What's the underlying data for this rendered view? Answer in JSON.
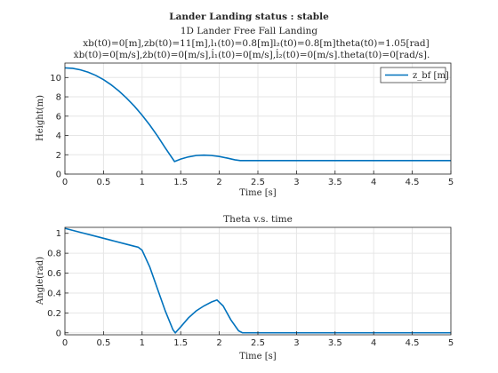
{
  "figure": {
    "status_title": "Lander Landing status : stable",
    "subtitle": "1D Lander Free Fall Landing",
    "param_line_1": "xb(t0)=0[m],zb(t0)=11[m],l₁(t0)=0.8[m]l₂(t0)=0.8[m]theta(t0)=1.05[rad]",
    "param_line_2": "ẋb(t0)=0[m/s],żb(t0)=0[m/s],l̇₁(t0)=0[m/s],l̇₂(t0)=0[m/s].theta(t0)=0[rad/s]."
  },
  "chart_data": [
    {
      "type": "line",
      "title": "",
      "xlabel": "Time [s]",
      "ylabel": "Height(m)",
      "xlim": [
        0,
        5
      ],
      "ylim": [
        0,
        11
      ],
      "xticks": [
        "0",
        "0.5",
        "1",
        "1.5",
        "2",
        "2.5",
        "3",
        "3.5",
        "4",
        "4.5",
        "5"
      ],
      "yticks": [
        "0",
        "2",
        "4",
        "6",
        "8",
        "10"
      ],
      "grid": true,
      "legend_position": "top-right",
      "series": [
        {
          "name": "z_bf [m]",
          "color": "#0072bd",
          "x": [
            0,
            0.1,
            0.2,
            0.3,
            0.4,
            0.5,
            0.6,
            0.7,
            0.8,
            0.9,
            1.0,
            1.1,
            1.2,
            1.3,
            1.42,
            1.5,
            1.6,
            1.7,
            1.8,
            1.9,
            2.0,
            2.1,
            2.2,
            2.27,
            2.4,
            3.0,
            3.5,
            4.0,
            4.5,
            5.0
          ],
          "y": [
            11.0,
            10.95,
            10.8,
            10.56,
            10.22,
            9.78,
            9.24,
            8.6,
            7.86,
            7.03,
            6.1,
            5.07,
            3.94,
            2.71,
            1.3,
            1.55,
            1.78,
            1.92,
            1.96,
            1.92,
            1.82,
            1.66,
            1.48,
            1.4,
            1.4,
            1.4,
            1.4,
            1.4,
            1.4,
            1.4
          ]
        }
      ]
    },
    {
      "type": "line",
      "title": "Theta v.s. time",
      "xlabel": "Time [s]",
      "ylabel": "Angle(rad)",
      "xlim": [
        0,
        5
      ],
      "ylim": [
        0,
        1.05
      ],
      "xticks": [
        "0",
        "0.5",
        "1",
        "1.5",
        "2",
        "2.5",
        "3",
        "3.5",
        "4",
        "4.5",
        "5"
      ],
      "yticks": [
        "0",
        "0.2",
        "0.4",
        "0.6",
        "0.8",
        "1"
      ],
      "grid": true,
      "series": [
        {
          "name": "",
          "color": "#0072bd",
          "x": [
            0,
            0.2,
            0.4,
            0.6,
            0.8,
            0.9,
            0.95,
            1.0,
            1.1,
            1.2,
            1.3,
            1.4,
            1.43,
            1.5,
            1.6,
            1.7,
            1.8,
            1.9,
            1.97,
            2.05,
            2.15,
            2.25,
            2.3,
            2.5,
            3.0,
            3.5,
            4.0,
            4.5,
            5.0
          ],
          "y": [
            1.05,
            1.01,
            0.97,
            0.93,
            0.89,
            0.87,
            0.86,
            0.83,
            0.66,
            0.44,
            0.22,
            0.03,
            0.0,
            0.06,
            0.15,
            0.22,
            0.27,
            0.31,
            0.33,
            0.27,
            0.13,
            0.02,
            0.0,
            0.0,
            0.0,
            0.0,
            0.0,
            0.0,
            0.0
          ]
        }
      ]
    }
  ]
}
